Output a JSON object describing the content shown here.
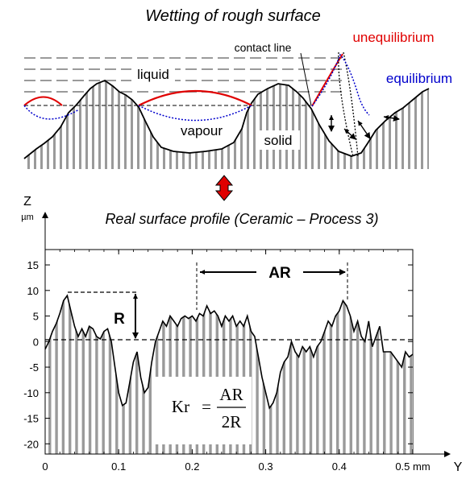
{
  "top_panel": {
    "title": "Wetting of rough surface",
    "labels": {
      "liquid": "liquid",
      "vapour": "vapour",
      "solid": "solid",
      "contact_line": "contact line",
      "unequilibrium": "unequilibrium",
      "equilibrium": "equilibrium"
    },
    "colors": {
      "unequilibrium": "#e00000",
      "equilibrium": "#0000cc",
      "arrow": "#e00000"
    }
  },
  "bottom_panel": {
    "title": "Real surface profile (Ceramic – Process 3)",
    "z_axis": {
      "letter": "Z",
      "unit": "µm"
    },
    "y_axis": {
      "letter": "Y",
      "unit": "mm"
    },
    "annotations": {
      "AR": "AR",
      "R": "R"
    },
    "formula": {
      "lhs": "Kr",
      "eq": "=",
      "num": "AR",
      "den": "2R"
    }
  },
  "chart_data": {
    "type": "line",
    "title": "Real surface profile (Ceramic – Process 3)",
    "xlabel": "Y (mm)",
    "ylabel": "Z (µm)",
    "xlim": [
      0,
      0.5
    ],
    "ylim": [
      -22,
      18
    ],
    "xticks": [
      "0",
      "0.1",
      "0.2",
      "0.3",
      "0.4",
      "0.5"
    ],
    "yticks": [
      "15",
      "10",
      "5",
      "0",
      "-5",
      "-10",
      "-15",
      "-20"
    ],
    "series": [
      {
        "x": [
          0,
          0.005,
          0.01,
          0.015,
          0.02,
          0.025,
          0.03,
          0.035,
          0.04,
          0.045,
          0.05,
          0.055,
          0.06,
          0.065,
          0.07,
          0.075,
          0.08,
          0.085,
          0.09,
          0.095,
          0.1,
          0.105,
          0.11,
          0.115,
          0.12,
          0.125,
          0.13,
          0.135,
          0.14,
          0.145,
          0.15,
          0.155,
          0.16,
          0.165,
          0.17,
          0.175,
          0.18,
          0.185,
          0.19,
          0.195,
          0.2,
          0.205,
          0.21,
          0.215,
          0.22,
          0.225,
          0.23,
          0.235,
          0.24,
          0.245,
          0.25,
          0.255,
          0.26,
          0.265,
          0.27,
          0.275,
          0.28,
          0.285,
          0.29,
          0.295,
          0.3,
          0.305,
          0.31,
          0.315,
          0.32,
          0.325,
          0.33,
          0.335,
          0.34,
          0.345,
          0.35,
          0.355,
          0.36,
          0.365,
          0.37,
          0.375,
          0.38,
          0.385,
          0.39,
          0.395,
          0.4,
          0.405,
          0.41,
          0.415,
          0.42,
          0.425,
          0.43,
          0.435,
          0.44,
          0.445,
          0.45,
          0.455,
          0.46,
          0.465,
          0.47,
          0.475,
          0.48,
          0.485,
          0.49,
          0.495,
          0.5
        ],
        "y": [
          -1.5,
          0,
          2,
          3.5,
          5.5,
          8,
          9,
          6,
          3,
          1,
          2.5,
          1,
          3,
          2.5,
          1,
          0.5,
          2,
          2.5,
          0,
          -5,
          -10,
          -12.5,
          -12,
          -8,
          -4,
          -2,
          -7,
          -10,
          -9,
          -4,
          0,
          2,
          4,
          3,
          5,
          4,
          3,
          4.5,
          5,
          4.5,
          5,
          4,
          5.5,
          5,
          7,
          5.5,
          6,
          5,
          3,
          5,
          4,
          5,
          3,
          4,
          3,
          5,
          2,
          1,
          -3,
          -7,
          -10,
          -13,
          -12,
          -10,
          -6,
          -4,
          -3,
          0,
          -2,
          -3,
          -1,
          -2,
          -1,
          -3,
          -1,
          0,
          2,
          4,
          3,
          5,
          6,
          8,
          7,
          5,
          2,
          4,
          1,
          0,
          4,
          -1,
          1,
          3,
          -2,
          -2,
          -2,
          -3,
          -4,
          -5,
          -2,
          -3,
          -2.5
        ]
      }
    ],
    "annotations": [
      {
        "label": "R",
        "from_y": 0,
        "to_y": 9
      },
      {
        "label": "AR",
        "from_x": 0.21,
        "to_x": 0.415
      }
    ],
    "formula": "Kr = AR / 2R",
    "grid": false
  }
}
